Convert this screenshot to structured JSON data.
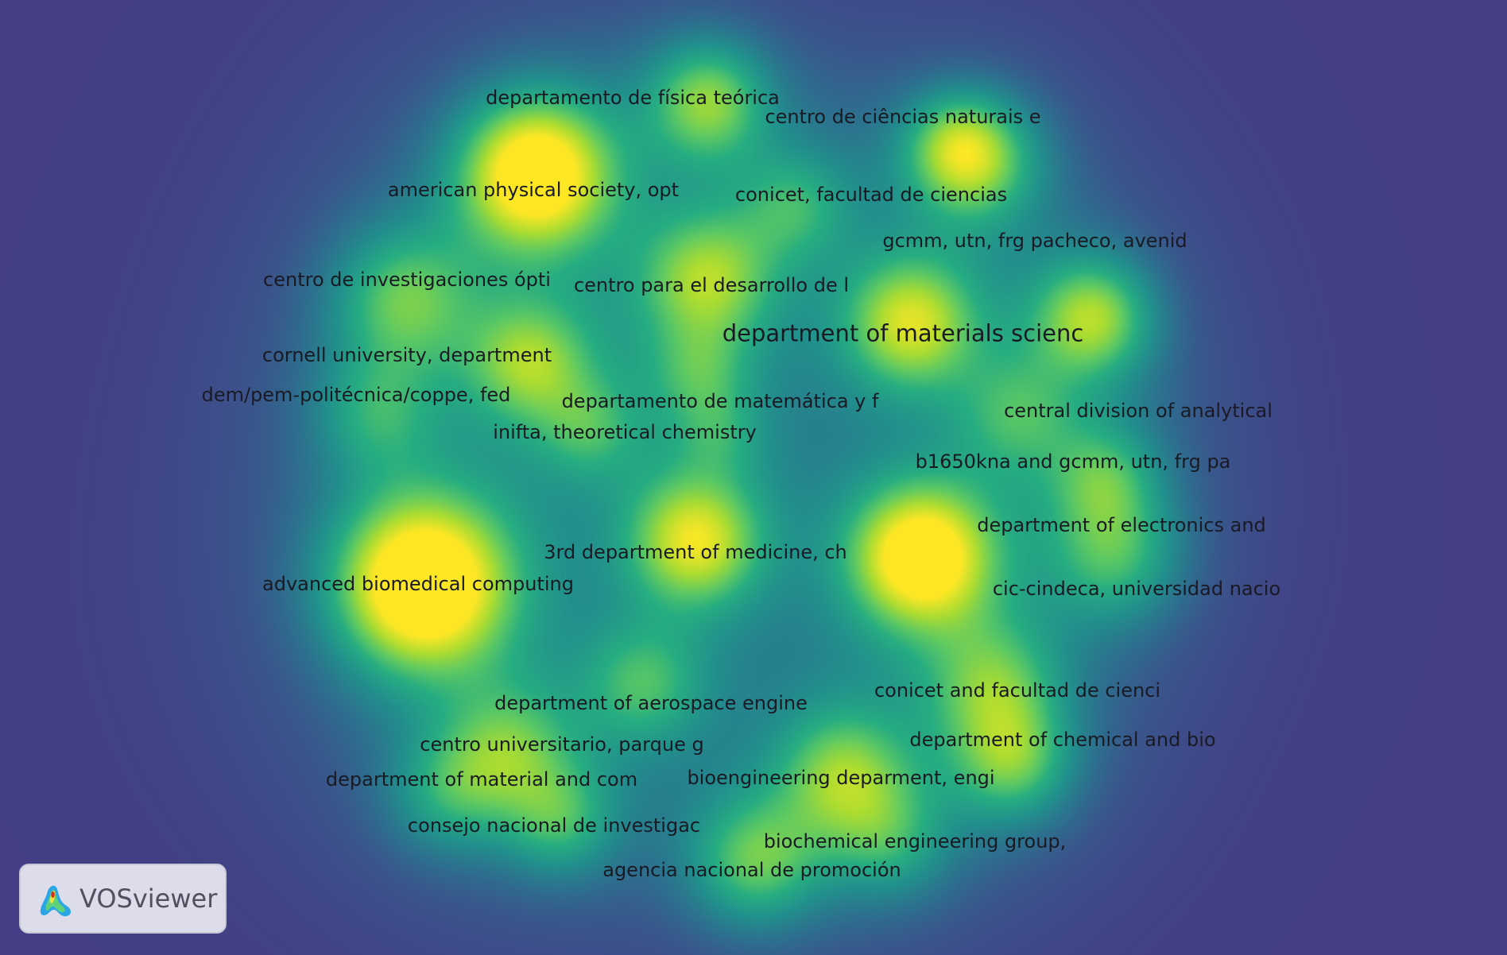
{
  "app": {
    "logo_label": "VOSviewer"
  },
  "colors": {
    "background": "#433e85"
  },
  "labels": [
    {
      "id": "l1",
      "text": "departamento de física teórica"
    },
    {
      "id": "l2",
      "text": "centro de ciências naturais e"
    },
    {
      "id": "l3",
      "text": "american physical society, opt"
    },
    {
      "id": "l4",
      "text": "conicet, facultad de ciencias"
    },
    {
      "id": "l5",
      "text": "gcmm, utn, frg pacheco, avenid"
    },
    {
      "id": "l6",
      "text": "centro de investigaciones ópti"
    },
    {
      "id": "l7",
      "text": "centro para el desarrollo de l"
    },
    {
      "id": "l8",
      "text": "department of materials scienc"
    },
    {
      "id": "l9",
      "text": "cornell university, department"
    },
    {
      "id": "l10",
      "text": "dem/pem-politécnica/coppe, fed"
    },
    {
      "id": "l11",
      "text": "departamento de matemática y f"
    },
    {
      "id": "l12",
      "text": "central division of analytical"
    },
    {
      "id": "l13",
      "text": "inifta, theoretical chemistry"
    },
    {
      "id": "l14",
      "text": "b1650kna and gcmm, utn, frg pa"
    },
    {
      "id": "l15",
      "text": "department of electronics and"
    },
    {
      "id": "l16",
      "text": "3rd department of medicine, ch"
    },
    {
      "id": "l17",
      "text": "advanced biomedical computing"
    },
    {
      "id": "l18",
      "text": "cic-cindeca, universidad nacio"
    },
    {
      "id": "l19",
      "text": "conicet and facultad de cienci"
    },
    {
      "id": "l20",
      "text": "department of aerospace engine"
    },
    {
      "id": "l21",
      "text": "department of chemical and bio"
    },
    {
      "id": "l22",
      "text": "centro universitario, parque g"
    },
    {
      "id": "l23",
      "text": "bioengineering deparment, engi"
    },
    {
      "id": "l24",
      "text": "department of material and com"
    },
    {
      "id": "l25",
      "text": "consejo nacional de investigac"
    },
    {
      "id": "l26",
      "text": "biochemical engineering group,"
    },
    {
      "id": "l27",
      "text": "agencia nacional de promoción"
    }
  ]
}
